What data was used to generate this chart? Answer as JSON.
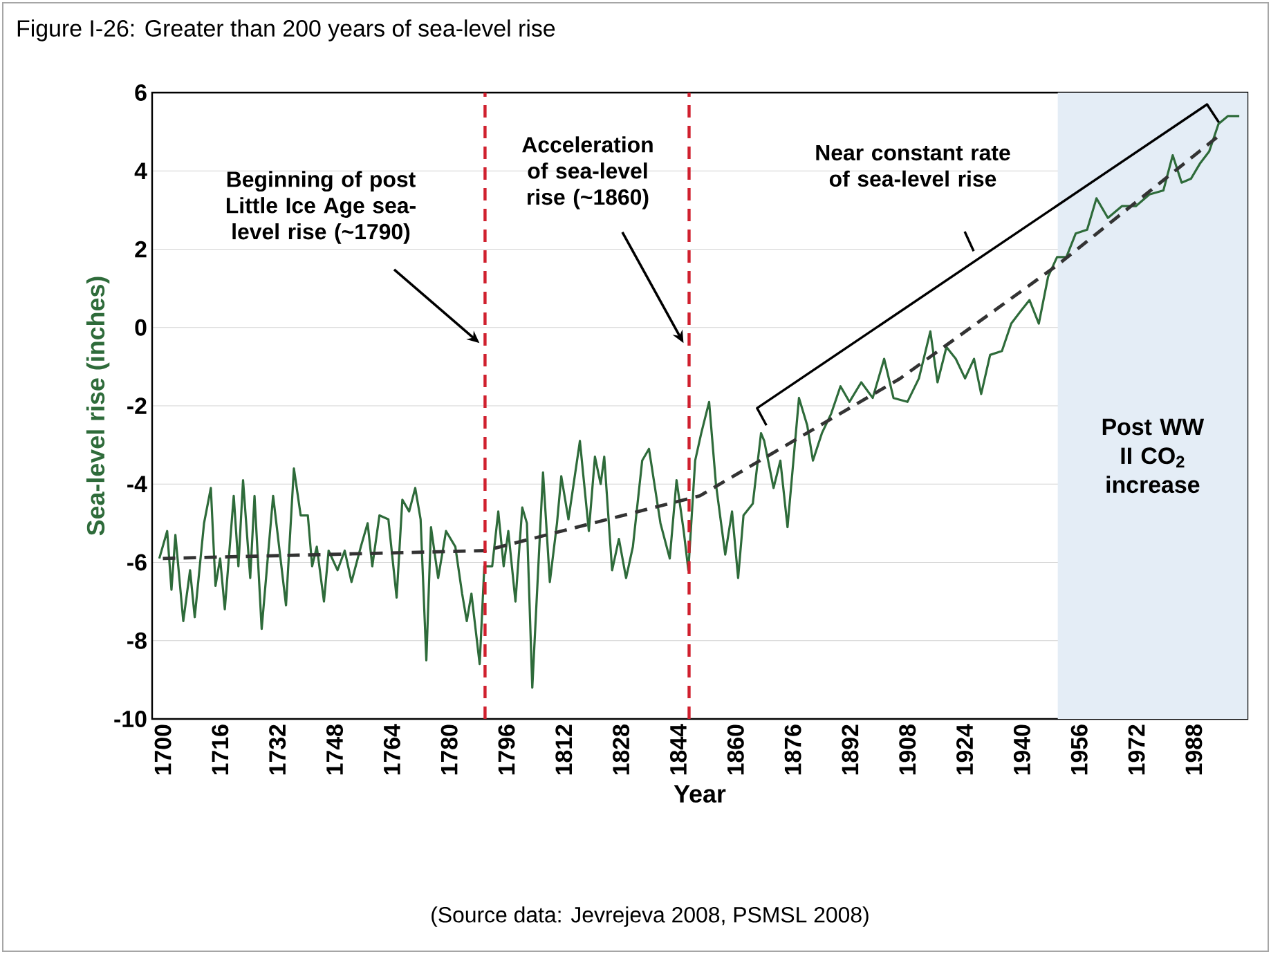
{
  "chart_data": {
    "type": "line",
    "title": "Figure I-26: Greater than 200 years of sea-level rise",
    "xlabel": "Year",
    "ylabel": "Sea-level rise (inches)",
    "xlim": [
      1697,
      2003
    ],
    "ylim": [
      -10,
      6
    ],
    "xticks": [
      1700,
      1716,
      1732,
      1748,
      1764,
      1780,
      1796,
      1812,
      1828,
      1844,
      1860,
      1876,
      1892,
      1908,
      1924,
      1940,
      1956,
      1972,
      1988
    ],
    "yticks": [
      -10,
      -8,
      -6,
      -4,
      -2,
      0,
      2,
      4,
      6
    ],
    "grid": "y",
    "marker": "none",
    "line_style": "solid",
    "series": [
      {
        "color": "#2e6b3a",
        "x": [
          1699,
          1701.2,
          1702.4,
          1703.5,
          1705.7,
          1707.6,
          1708.9,
          1711.5,
          1713.4,
          1714.7,
          1716,
          1717.3,
          1719.8,
          1721.1,
          1722.4,
          1724.4,
          1725.6,
          1727.6,
          1730.8,
          1734.4,
          1736.6,
          1738.5,
          1740.5,
          1741.7,
          1743,
          1745,
          1746.3,
          1748.8,
          1750.8,
          1752.7,
          1755.3,
          1757.2,
          1758.5,
          1760.5,
          1763,
          1765.3,
          1766.9,
          1768.8,
          1770.5,
          1772,
          1773.6,
          1774.9,
          1776.9,
          1779.1,
          1781.7,
          1783.6,
          1784.9,
          1786.2,
          1788.5,
          1789.8,
          1792,
          1793.7,
          1795.2,
          1796.5,
          1798.5,
          1800.4,
          1801.7,
          1803.2,
          1806.2,
          1808.1,
          1810.1,
          1811.3,
          1813.3,
          1816.5,
          1819,
          1820.7,
          1822.3,
          1823.3,
          1825.5,
          1827.4,
          1829.4,
          1831.3,
          1833.9,
          1835.8,
          1839,
          1841.6,
          1843.5,
          1845.5,
          1846.8,
          1848.7,
          1850.4,
          1852.6,
          1854.5,
          1857.1,
          1859,
          1860.7,
          1862.2,
          1864.8,
          1867.1,
          1868,
          1870.6,
          1872.5,
          1874.5,
          1877.7,
          1880,
          1881.6,
          1884.1,
          1886.7,
          1889.3,
          1891.8,
          1895.1,
          1898.3,
          1901.5,
          1904.1,
          1908,
          1911.2,
          1914.4,
          1916.4,
          1918.9,
          1921.5,
          1924.1,
          1926.6,
          1928.6,
          1931.1,
          1934.4,
          1937,
          1939.5,
          1942.1,
          1944.7,
          1947.3,
          1949.8,
          1952.4,
          1955,
          1958.2,
          1960.8,
          1964,
          1967.9,
          1971.8,
          1975.6,
          1979.5,
          1982.1,
          1984.6,
          1987.2,
          1989.8,
          1992.3,
          1994.9,
          1997.5,
          2000.7
        ],
        "values": [
          -5.9,
          -5.2,
          -6.7,
          -5.3,
          -7.5,
          -6.2,
          -7.4,
          -5.0,
          -4.1,
          -6.6,
          -5.9,
          -7.2,
          -4.3,
          -6.1,
          -3.9,
          -6.4,
          -4.3,
          -7.7,
          -4.3,
          -7.1,
          -3.6,
          -4.8,
          -4.8,
          -6.1,
          -5.6,
          -7.0,
          -5.7,
          -6.2,
          -5.7,
          -6.5,
          -5.6,
          -5.0,
          -6.1,
          -4.8,
          -4.9,
          -6.9,
          -4.4,
          -4.7,
          -4.1,
          -4.9,
          -8.5,
          -5.1,
          -6.4,
          -5.2,
          -5.6,
          -6.8,
          -7.5,
          -6.8,
          -8.6,
          -6.1,
          -6.1,
          -4.7,
          -6.1,
          -5.2,
          -7.0,
          -4.6,
          -5.0,
          -9.2,
          -3.7,
          -6.5,
          -5.0,
          -3.8,
          -4.9,
          -2.9,
          -5.2,
          -3.3,
          -4.0,
          -3.3,
          -6.2,
          -5.4,
          -6.4,
          -5.6,
          -3.4,
          -3.1,
          -5.0,
          -5.9,
          -3.9,
          -5.2,
          -6.2,
          -3.4,
          -2.7,
          -1.9,
          -4.0,
          -5.8,
          -4.7,
          -6.4,
          -4.8,
          -4.5,
          -2.7,
          -2.9,
          -4.1,
          -3.4,
          -5.1,
          -1.8,
          -2.5,
          -3.4,
          -2.7,
          -2.2,
          -1.5,
          -1.9,
          -1.4,
          -1.8,
          -0.8,
          -1.8,
          -1.9,
          -1.3,
          -0.1,
          -1.4,
          -0.5,
          -0.8,
          -1.3,
          -0.8,
          -1.7,
          -0.7,
          -0.6,
          0.1,
          0.4,
          0.7,
          0.1,
          1.3,
          1.8,
          1.8,
          2.4,
          2.5,
          3.3,
          2.8,
          3.1,
          3.1,
          3.4,
          3.5,
          4.4,
          3.7,
          3.8,
          4.2,
          4.5,
          5.2,
          5.4,
          5.4
        ]
      },
      {
        "color": "#333333",
        "line_style": "dashed",
        "x": [
          1700,
          1790,
          1850,
          1906,
          1950,
          1995
        ],
        "values": [
          -5.9,
          -5.7,
          -4.3,
          -1.3,
          1.6,
          4.9
        ]
      }
    ],
    "ref_lines": [
      {
        "axis": "x",
        "value": 1790,
        "label": "Beginning of post Little Ice Age sea-level rise (~1790)",
        "color": "#d0202e",
        "line_style": "dashed"
      },
      {
        "axis": "x",
        "value": 1847,
        "label": "Acceleration of sea-level rise (~1860)",
        "color": "#d0202e",
        "line_style": "dashed"
      }
    ],
    "bands": [
      {
        "axis": "x",
        "from": 1950,
        "to": 2003,
        "label": "Post WW II CO$_{2}$ increase",
        "color": "#e4edf6"
      }
    ],
    "annotations": [
      "Near constant rate of sea-level rise",
      "(Source data: Jevrejeva 2008, PSMSL 2008)"
    ]
  }
}
